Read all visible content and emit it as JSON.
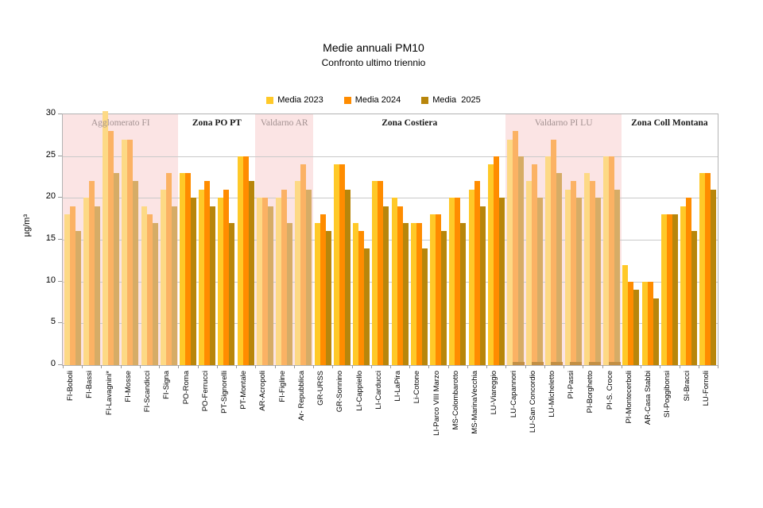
{
  "title": "Medie annuali PM10",
  "subtitle": "Confronto ultimo triennio",
  "y_axis": {
    "label": "µg/m³",
    "ticks": [
      0,
      5,
      10,
      15,
      20,
      25,
      30
    ],
    "max": 30
  },
  "colors": {
    "series": [
      "#FFC928",
      "#FF8C00",
      "#B8860B"
    ],
    "series_muted": [
      "#FDD985",
      "#FBB264",
      "#D6AC66"
    ],
    "stub": "#C28F45",
    "zone_shaded_bg": "#FBE4E4",
    "zone_label_shaded": "#A39191",
    "zone_label_plain": "#1A1A1A",
    "grid": "#C9C9C9",
    "axis": "#999999"
  },
  "chart_data": {
    "type": "bar",
    "title": "Medie annuali PM10",
    "subtitle": "Confronto ultimo triennio",
    "ylabel": "µg/m³",
    "ylim": [
      0,
      30
    ],
    "grid": true,
    "legend_position": "top-center",
    "series_names": [
      "Media 2023",
      "Media 2024",
      "Media  2025"
    ],
    "zones": [
      {
        "name": "Agglomerato FI",
        "shaded": true,
        "stations": [
          {
            "label": "FI-Boboli",
            "values": [
              18,
              19,
              16
            ]
          },
          {
            "label": "FI-Bassi",
            "values": [
              20,
              22,
              19
            ]
          },
          {
            "label": "FI-Lavagnini*",
            "values": [
              30.4,
              28,
              23
            ]
          },
          {
            "label": "FI-Mosse",
            "values": [
              27,
              27,
              22
            ]
          },
          {
            "label": "FI-Scandicci",
            "values": [
              19,
              18,
              17
            ]
          },
          {
            "label": "FI-Signa",
            "values": [
              21,
              23,
              19
            ]
          }
        ]
      },
      {
        "name": "Zona PO PT",
        "shaded": false,
        "stations": [
          {
            "label": "PO-Roma",
            "values": [
              23,
              23,
              20
            ]
          },
          {
            "label": "PO-Ferrucci",
            "values": [
              21,
              22,
              19
            ]
          },
          {
            "label": "PT-Signorelli",
            "values": [
              20,
              21,
              17
            ]
          },
          {
            "label": "PT-Montale",
            "values": [
              25,
              25,
              22
            ]
          }
        ]
      },
      {
        "name": "Valdarno AR",
        "shaded": true,
        "stations": [
          {
            "label": "AR-Acropoli",
            "values": [
              20,
              20,
              19
            ]
          },
          {
            "label": "FI-Figline",
            "values": [
              20,
              21,
              17
            ]
          },
          {
            "label": "Ar- Repubblica",
            "values": [
              22,
              24,
              21
            ]
          }
        ]
      },
      {
        "name": "Zona Costiera",
        "shaded": false,
        "stations": [
          {
            "label": "GR-URSS",
            "values": [
              17,
              18,
              16
            ]
          },
          {
            "label": "GR-Sonnino",
            "values": [
              24,
              24,
              21
            ]
          },
          {
            "label": "LI-Cappiello",
            "values": [
              17,
              16,
              14
            ]
          },
          {
            "label": "LI-Carducci",
            "values": [
              22,
              22,
              19
            ]
          },
          {
            "label": "LI-LaPira",
            "values": [
              20,
              19,
              17
            ]
          },
          {
            "label": "Li-Cotone",
            "values": [
              17,
              17,
              14
            ]
          },
          {
            "label": "LI-Parco VIII Marzo",
            "values": [
              18,
              18,
              16
            ]
          },
          {
            "label": "MS-Colombarotto",
            "values": [
              20,
              20,
              17
            ]
          },
          {
            "label": "MS-MarinaVecchia",
            "values": [
              21,
              22,
              19
            ]
          },
          {
            "label": "LU-Viareggio",
            "values": [
              24,
              25,
              20
            ]
          }
        ]
      },
      {
        "name": "Valdarno PI LU",
        "shaded": true,
        "stations": [
          {
            "label": "LU-Capannori",
            "values": [
              27,
              28,
              25
            ],
            "base_stub": 0.4
          },
          {
            "label": "LU-San Concordio",
            "values": [
              22,
              24,
              20
            ],
            "base_stub": 0.4
          },
          {
            "label": "LU-Micheletto",
            "values": [
              25,
              27,
              23
            ],
            "base_stub": 0.4
          },
          {
            "label": "PI-Passi",
            "values": [
              21,
              22,
              20
            ],
            "base_stub": 0.4
          },
          {
            "label": "PI-Borghetto",
            "values": [
              23,
              22,
              20
            ],
            "base_stub": 0.4
          },
          {
            "label": "PI-S. Croce",
            "values": [
              25,
              25,
              21
            ],
            "base_stub": 0.4
          }
        ]
      },
      {
        "name": "Zona Coll Montana",
        "shaded": false,
        "stations": [
          {
            "label": "PI-Montecerboli",
            "values": [
              12,
              10,
              9
            ]
          },
          {
            "label": "AR-Casa Stabbi",
            "values": [
              10,
              10,
              8
            ]
          },
          {
            "label": "SI-Poggibonsi",
            "values": [
              18,
              18,
              18
            ]
          },
          {
            "label": "SI-Bracci",
            "values": [
              19,
              20,
              16
            ]
          },
          {
            "label": "LU-Fornoli",
            "values": [
              23,
              23,
              21
            ]
          }
        ]
      }
    ]
  }
}
